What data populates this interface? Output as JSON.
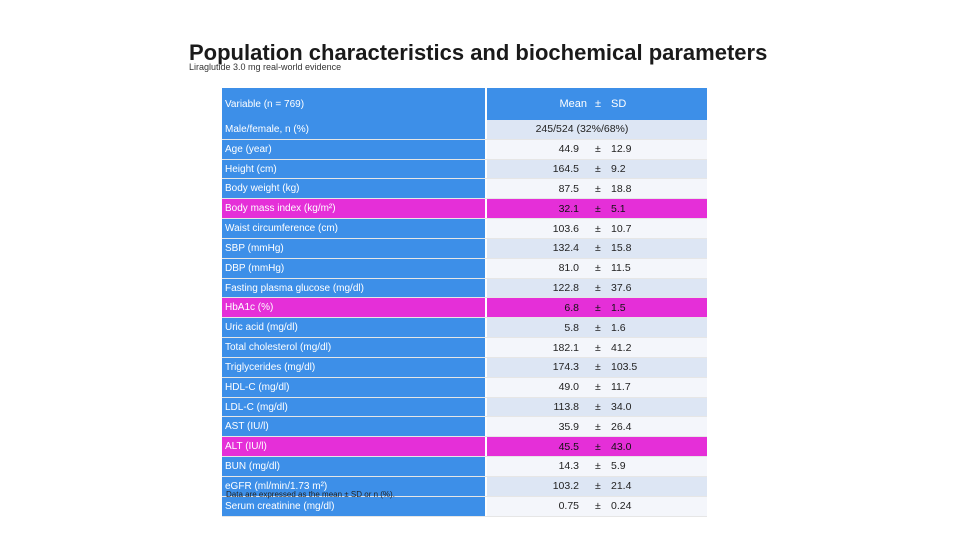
{
  "title": "Population characteristics and biochemical parameters",
  "subtitle": "Liraglutide 3.0 mg real-world evidence",
  "table": {
    "header_variable": "Variable (n = 769)",
    "header_mean": "Mean",
    "header_pm": "±",
    "header_sd": "SD",
    "rows": [
      {
        "label": "Male/female, n (%)",
        "full": "245/524 (32%/68%)",
        "highlight": false
      },
      {
        "label": "Age (year)",
        "mean": "44.9",
        "pm": "±",
        "sd": "12.9",
        "highlight": false
      },
      {
        "label": "Height (cm)",
        "mean": "164.5",
        "pm": "±",
        "sd": "9.2",
        "highlight": false
      },
      {
        "label": "Body weight (kg)",
        "mean": "87.5",
        "pm": "±",
        "sd": "18.8",
        "highlight": false
      },
      {
        "label": "Body mass index (kg/m²)",
        "mean": "32.1",
        "pm": "±",
        "sd": "5.1",
        "highlight": true
      },
      {
        "label": "Waist circumference (cm)",
        "mean": "103.6",
        "pm": "±",
        "sd": "10.7",
        "highlight": false
      },
      {
        "label": "SBP (mmHg)",
        "mean": "132.4",
        "pm": "±",
        "sd": "15.8",
        "highlight": false
      },
      {
        "label": "DBP (mmHg)",
        "mean": "81.0",
        "pm": "±",
        "sd": "11.5",
        "highlight": false
      },
      {
        "label": "Fasting plasma glucose (mg/dl)",
        "mean": "122.8",
        "pm": "±",
        "sd": "37.6",
        "highlight": false
      },
      {
        "label": "HbA1c (%)",
        "mean": "6.8",
        "pm": "±",
        "sd": "1.5",
        "highlight": true
      },
      {
        "label": "Uric acid (mg/dl)",
        "mean": "5.8",
        "pm": "±",
        "sd": "1.6",
        "highlight": false
      },
      {
        "label": "Total cholesterol (mg/dl)",
        "mean": "182.1",
        "pm": "±",
        "sd": "41.2",
        "highlight": false
      },
      {
        "label": "Triglycerides (mg/dl)",
        "mean": "174.3",
        "pm": "±",
        "sd": "103.5",
        "highlight": false
      },
      {
        "label": "HDL-C (mg/dl)",
        "mean": "49.0",
        "pm": "±",
        "sd": "11.7",
        "highlight": false
      },
      {
        "label": "LDL-C (mg/dl)",
        "mean": "113.8",
        "pm": "±",
        "sd": "34.0",
        "highlight": false
      },
      {
        "label": "AST (IU/l)",
        "mean": "35.9",
        "pm": "±",
        "sd": "26.4",
        "highlight": false
      },
      {
        "label": "ALT (IU/l)",
        "mean": "45.5",
        "pm": "±",
        "sd": "43.0",
        "highlight": true
      },
      {
        "label": "BUN (mg/dl)",
        "mean": "14.3",
        "pm": "±",
        "sd": "5.9",
        "highlight": false
      },
      {
        "label": "eGFR (ml/min/1.73 m²)",
        "mean": "103.2",
        "pm": "±",
        "sd": "21.4",
        "highlight": false
      },
      {
        "label": "Serum creatinine (mg/dl)",
        "mean": "0.75",
        "pm": "±",
        "sd": "0.24",
        "highlight": false
      }
    ]
  },
  "footnote": "Data are expressed as the mean ± SD or n (%)."
}
